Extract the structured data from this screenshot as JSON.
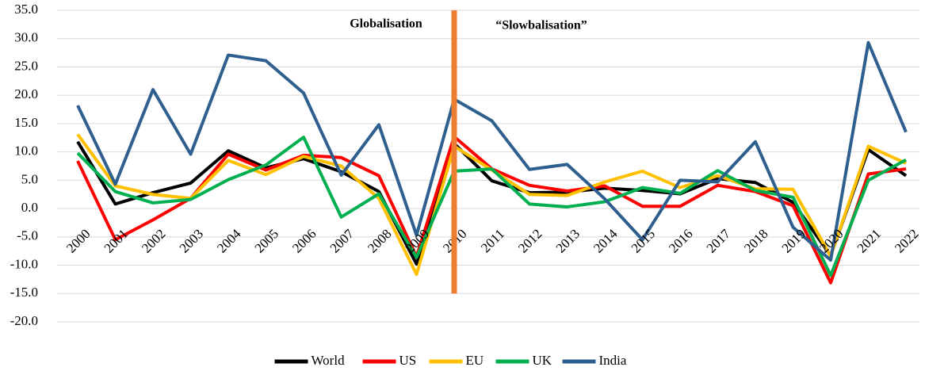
{
  "chart_data": {
    "type": "line",
    "categories": [
      "2000",
      "2001",
      "2002",
      "2003",
      "2004",
      "2005",
      "2006",
      "2007",
      "2008",
      "2009",
      "2010",
      "2011",
      "2012",
      "2013",
      "2014",
      "2015",
      "2016",
      "2017",
      "2018",
      "2019",
      "2020",
      "2021",
      "2022"
    ],
    "series": [
      {
        "name": "World",
        "color": "#000000",
        "values": [
          11.8,
          0.8,
          2.8,
          4.5,
          10.2,
          7.2,
          8.8,
          6.5,
          3.0,
          -9.8,
          11.5,
          4.9,
          2.8,
          2.9,
          3.6,
          3.2,
          2.6,
          5.3,
          4.6,
          1.1,
          -8.3,
          10.4,
          5.8
        ]
      },
      {
        "name": "US",
        "color": "#ff0000",
        "values": [
          8.4,
          -5.5,
          -2.0,
          1.8,
          9.6,
          6.8,
          9.4,
          9.0,
          5.8,
          -8.5,
          12.7,
          7.0,
          4.1,
          3.1,
          4.0,
          0.4,
          0.4,
          4.1,
          3.0,
          0.5,
          -13.1,
          6.1,
          7.0
        ]
      },
      {
        "name": "EU",
        "color": "#ffc000",
        "values": [
          13.1,
          4.0,
          2.5,
          1.8,
          8.5,
          6.0,
          9.2,
          7.5,
          1.8,
          -11.6,
          11.0,
          6.8,
          2.5,
          2.3,
          4.7,
          6.6,
          3.7,
          5.8,
          3.5,
          3.4,
          -8.4,
          11.0,
          8.0
        ]
      },
      {
        "name": "UK",
        "color": "#00b050",
        "values": [
          9.8,
          3.0,
          1.0,
          1.6,
          5.1,
          7.7,
          12.6,
          -1.5,
          2.6,
          -8.6,
          6.6,
          7.0,
          0.8,
          0.3,
          1.2,
          3.7,
          2.7,
          6.7,
          3.2,
          2.0,
          -11.8,
          5.0,
          8.6
        ]
      },
      {
        "name": "India",
        "color": "#2e5f8e",
        "values": [
          18.2,
          4.3,
          21.0,
          9.6,
          27.1,
          26.1,
          20.4,
          5.9,
          14.8,
          -4.7,
          19.3,
          15.5,
          6.9,
          7.8,
          1.7,
          -5.5,
          5.0,
          4.7,
          11.8,
          -3.3,
          -9.1,
          29.3,
          13.5
        ]
      }
    ],
    "ylim": [
      -20,
      35
    ],
    "yticks": [
      {
        "value": -20,
        "label": "-20.0"
      },
      {
        "value": -15,
        "label": "-15.0"
      },
      {
        "value": -10,
        "label": "-10.0"
      },
      {
        "value": -5,
        "label": "-5.0"
      },
      {
        "value": 0,
        "label": "0.0"
      },
      {
        "value": 5,
        "label": "5.0"
      },
      {
        "value": 10,
        "label": "10.0"
      },
      {
        "value": 15,
        "label": "15.0"
      },
      {
        "value": 20,
        "label": "20.0"
      },
      {
        "value": 25,
        "label": "25.0"
      },
      {
        "value": 30,
        "label": "30.0"
      },
      {
        "value": 35,
        "label": "35.0"
      }
    ],
    "grid": true,
    "legend": "bottom",
    "annotations": [
      "Globalisation",
      "“Slowbalisation”"
    ],
    "divider": {
      "category": "2010",
      "from": 35,
      "to": -15,
      "color": "#ed7d31"
    }
  }
}
